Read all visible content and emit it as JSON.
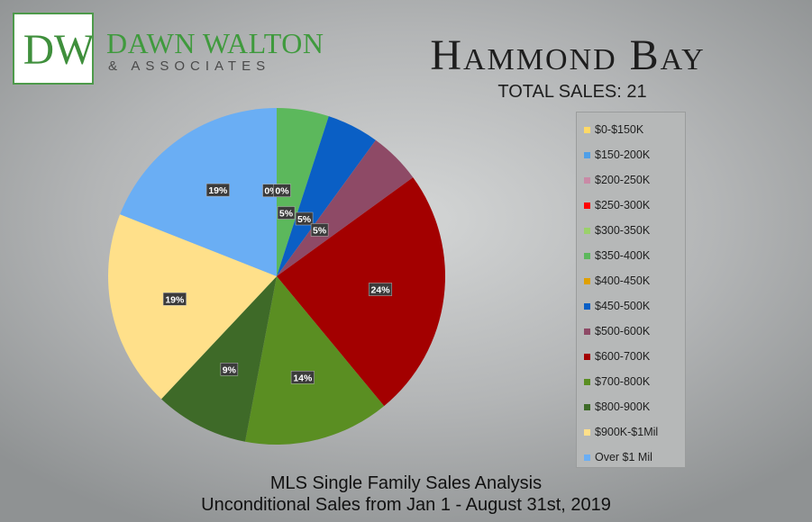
{
  "logo": {
    "monogram": "DW"
  },
  "brand": {
    "name": "DAWN WALTON",
    "tagline": "& ASSOCIATES"
  },
  "header": {
    "title": "Hammond Bay",
    "subtitle": "TOTAL SALES: 21"
  },
  "footer": {
    "line1": "MLS Single Family Sales Analysis",
    "line2": "Unconditional Sales from Jan 1 - August 31st, 2019"
  },
  "chart_data": {
    "type": "pie",
    "title": "",
    "legend_position": "right",
    "slices": [
      {
        "label": "$0-$150K",
        "value": 0,
        "display": "0%",
        "color": "#ffd966"
      },
      {
        "label": "$150-200K",
        "value": 0,
        "display": "",
        "color": "#4f9fe8"
      },
      {
        "label": "$200-250K",
        "value": 0,
        "display": "",
        "color": "#c98aa6"
      },
      {
        "label": "$250-300K",
        "value": 0,
        "display": "",
        "color": "#ff0000"
      },
      {
        "label": "$300-350K",
        "value": 0,
        "display": "",
        "color": "#9bd16b"
      },
      {
        "label": "$350-400K",
        "value": 5,
        "display": "5%",
        "color": "#5cb85c"
      },
      {
        "label": "$400-450K",
        "value": 0,
        "display": "0%",
        "color": "#e0a000"
      },
      {
        "label": "$450-500K",
        "value": 5,
        "display": "5%",
        "color": "#0a5fc5"
      },
      {
        "label": "$500-600K",
        "value": 5,
        "display": "5%",
        "color": "#8e4a66"
      },
      {
        "label": "$600-700K",
        "value": 24,
        "display": "24%",
        "color": "#a30000"
      },
      {
        "label": "$700-800K",
        "value": 14,
        "display": "14%",
        "color": "#5a8e22"
      },
      {
        "label": "$800-900K",
        "value": 9,
        "display": "9%",
        "color": "#3e6a28"
      },
      {
        "label": "$900K-$1Mil",
        "value": 19,
        "display": "19%",
        "color": "#ffe08a"
      },
      {
        "label": "Over $1 Mil",
        "value": 19,
        "display": "19%",
        "color": "#6aaef4"
      }
    ]
  }
}
